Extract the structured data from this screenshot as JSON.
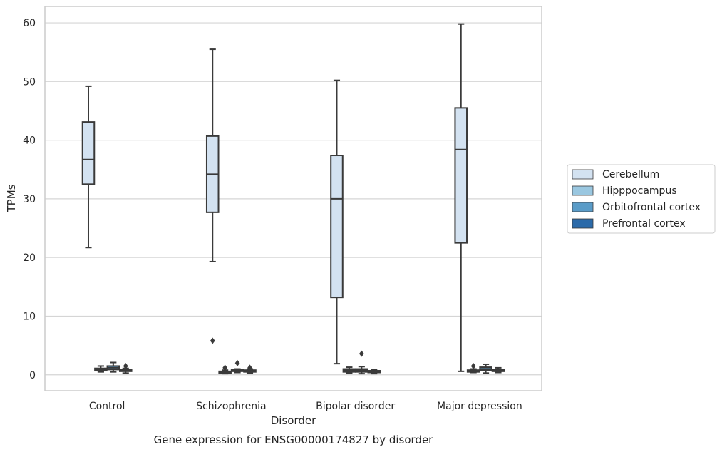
{
  "chart_data": {
    "type": "boxplot",
    "caption": "Gene expression for ENSG00000174827 by disorder",
    "xlabel": "Disorder",
    "ylabel": "TPMs",
    "ylim": [
      -2.7,
      62.8
    ],
    "yticks": [
      0,
      10,
      20,
      30,
      40,
      50,
      60
    ],
    "grid": "horizontal",
    "legend_placement": "right",
    "categories": [
      "Control",
      "Schizophrenia",
      "Bipolar disorder",
      "Major depression"
    ],
    "colors": {
      "Cerebellum": "#d3e2f1",
      "Hipppocampus": "#9ac7e0",
      "Orbitofrontal cortex": "#5a9cc8",
      "Prefrontal cortex": "#2b6aa9",
      "line": "#3a3a3a",
      "grid": "#d5d5d5",
      "frame": "#cccccc"
    },
    "series": [
      {
        "name": "Cerebellum",
        "boxes": [
          {
            "whisker_low": 21.7,
            "q1": 32.5,
            "median": 36.7,
            "q3": 43.1,
            "whisker_high": 49.2,
            "outliers": []
          },
          {
            "whisker_low": 19.3,
            "q1": 27.7,
            "median": 34.2,
            "q3": 40.7,
            "whisker_high": 55.5,
            "outliers": [
              5.8
            ]
          },
          {
            "whisker_low": 1.9,
            "q1": 13.2,
            "median": 30.0,
            "q3": 37.4,
            "whisker_high": 50.2,
            "outliers": []
          },
          {
            "whisker_low": 0.6,
            "q1": 22.5,
            "median": 38.4,
            "q3": 45.5,
            "whisker_high": 59.8,
            "outliers": []
          }
        ]
      },
      {
        "name": "Hipppocampus",
        "boxes": [
          {
            "whisker_low": 0.5,
            "q1": 0.7,
            "median": 0.9,
            "q3": 1.1,
            "whisker_high": 1.5,
            "outliers": []
          },
          {
            "whisker_low": 0.2,
            "q1": 0.3,
            "median": 0.5,
            "q3": 0.6,
            "whisker_high": 0.8,
            "outliers": [
              1.2
            ]
          },
          {
            "whisker_low": 0.3,
            "q1": 0.5,
            "median": 0.8,
            "q3": 1.0,
            "whisker_high": 1.3,
            "outliers": []
          },
          {
            "whisker_low": 0.4,
            "q1": 0.5,
            "median": 0.7,
            "q3": 0.8,
            "whisker_high": 1.0,
            "outliers": [
              1.5
            ]
          }
        ]
      },
      {
        "name": "Orbitofrontal cortex",
        "boxes": [
          {
            "whisker_low": 0.5,
            "q1": 0.9,
            "median": 1.2,
            "q3": 1.5,
            "whisker_high": 2.1,
            "outliers": []
          },
          {
            "whisker_low": 0.4,
            "q1": 0.6,
            "median": 0.8,
            "q3": 0.9,
            "whisker_high": 1.0,
            "outliers": [
              2.0
            ]
          },
          {
            "whisker_low": 0.2,
            "q1": 0.5,
            "median": 0.8,
            "q3": 1.0,
            "whisker_high": 1.4,
            "outliers": [
              3.6
            ]
          },
          {
            "whisker_low": 0.3,
            "q1": 0.8,
            "median": 1.0,
            "q3": 1.3,
            "whisker_high": 1.8,
            "outliers": []
          }
        ]
      },
      {
        "name": "Prefrontal cortex",
        "boxes": [
          {
            "whisker_low": 0.3,
            "q1": 0.6,
            "median": 0.8,
            "q3": 0.9,
            "whisker_high": 1.1,
            "outliers": [
              1.5
            ]
          },
          {
            "whisker_low": 0.3,
            "q1": 0.5,
            "median": 0.7,
            "q3": 0.8,
            "whisker_high": 1.0,
            "outliers": [
              1.2
            ]
          },
          {
            "whisker_low": 0.2,
            "q1": 0.4,
            "median": 0.6,
            "q3": 0.7,
            "whisker_high": 0.9,
            "outliers": []
          },
          {
            "whisker_low": 0.4,
            "q1": 0.6,
            "median": 0.8,
            "q3": 0.9,
            "whisker_high": 1.2,
            "outliers": []
          }
        ]
      }
    ]
  }
}
